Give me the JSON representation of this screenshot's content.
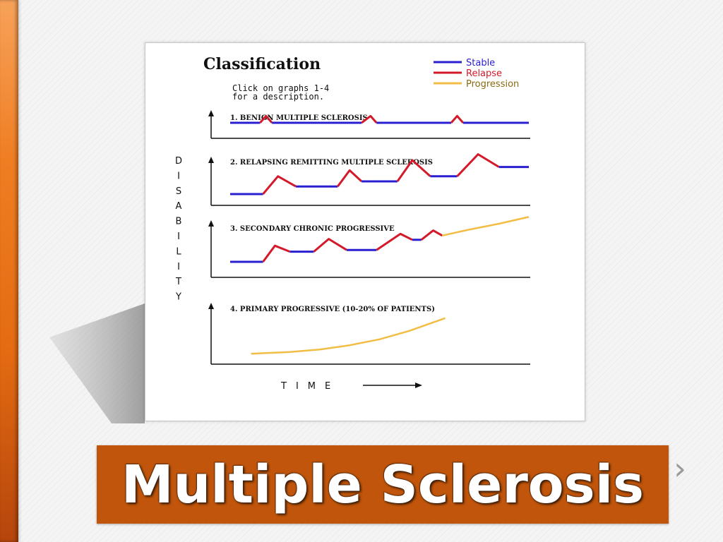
{
  "slide": {
    "title": "Multiple Sclerosis",
    "next_icon": "chevron-right-icon"
  },
  "colors": {
    "stable": "#2a1fd0",
    "relapse": "#d41a2a",
    "progression": "#f2bd44",
    "banner": "#c0550b",
    "accent_bar": "#e46b12"
  },
  "chart_data": {
    "type": "line",
    "title": "Classification",
    "subtitle": [
      "Click on graphs 1-4",
      "for a description."
    ],
    "legend": {
      "placement": "top-right",
      "entries": [
        {
          "name": "Stable",
          "color": "#2a1fd0"
        },
        {
          "name": "Relapse",
          "color": "#d41a2a"
        },
        {
          "name": "Progression",
          "color": "#f2bd44"
        }
      ]
    },
    "ylabel": "DISABILITY",
    "xlabel": "TIME",
    "panels": [
      {
        "label": "1. BENIGN MULTIPLE SCLEROSIS",
        "ylim": [
          0,
          10
        ],
        "segments": [
          {
            "kind": "stable",
            "points": [
              [
                0,
                1
              ],
              [
                0.1,
                1
              ]
            ]
          },
          {
            "kind": "relapse",
            "points": [
              [
                0.1,
                1
              ],
              [
                0.12,
                1.8
              ],
              [
                0.14,
                1
              ]
            ]
          },
          {
            "kind": "stable",
            "points": [
              [
                0.14,
                1
              ],
              [
                0.44,
                1
              ]
            ]
          },
          {
            "kind": "relapse",
            "points": [
              [
                0.44,
                1
              ],
              [
                0.47,
                1.8
              ],
              [
                0.49,
                1
              ]
            ]
          },
          {
            "kind": "stable",
            "points": [
              [
                0.49,
                1
              ],
              [
                0.74,
                1
              ]
            ]
          },
          {
            "kind": "relapse",
            "points": [
              [
                0.74,
                1
              ],
              [
                0.76,
                1.8
              ],
              [
                0.78,
                1
              ]
            ]
          },
          {
            "kind": "stable",
            "points": [
              [
                0.78,
                1
              ],
              [
                1.0,
                1
              ]
            ]
          }
        ]
      },
      {
        "label": "2. RELAPSING REMITTING MULTIPLE SCLEROSIS",
        "ylim": [
          0,
          10
        ],
        "segments": [
          {
            "kind": "stable",
            "points": [
              [
                0,
                0.5
              ],
              [
                0.11,
                0.5
              ]
            ]
          },
          {
            "kind": "relapse",
            "points": [
              [
                0.11,
                0.5
              ],
              [
                0.16,
                2.6
              ],
              [
                0.22,
                1.4
              ]
            ]
          },
          {
            "kind": "stable",
            "points": [
              [
                0.22,
                1.4
              ],
              [
                0.36,
                1.4
              ]
            ]
          },
          {
            "kind": "relapse",
            "points": [
              [
                0.36,
                1.4
              ],
              [
                0.4,
                3.3
              ],
              [
                0.44,
                2.0
              ]
            ]
          },
          {
            "kind": "stable",
            "points": [
              [
                0.44,
                2.0
              ],
              [
                0.56,
                2.0
              ]
            ]
          },
          {
            "kind": "relapse",
            "points": [
              [
                0.56,
                2.0
              ],
              [
                0.61,
                4.5
              ],
              [
                0.67,
                2.6
              ]
            ]
          },
          {
            "kind": "stable",
            "points": [
              [
                0.67,
                2.6
              ],
              [
                0.76,
                2.6
              ]
            ]
          },
          {
            "kind": "relapse",
            "points": [
              [
                0.76,
                2.6
              ],
              [
                0.83,
                5.2
              ],
              [
                0.9,
                3.7
              ]
            ]
          },
          {
            "kind": "stable",
            "points": [
              [
                0.9,
                3.7
              ],
              [
                1.0,
                3.7
              ]
            ]
          }
        ]
      },
      {
        "label": "3. SECONDARY CHRONIC PROGRESSIVE",
        "ylim": [
          0,
          10
        ],
        "segments": [
          {
            "kind": "stable",
            "points": [
              [
                0,
                1.0
              ],
              [
                0.11,
                1.0
              ]
            ]
          },
          {
            "kind": "relapse",
            "points": [
              [
                0.11,
                1.0
              ],
              [
                0.15,
                2.9
              ],
              [
                0.2,
                2.2
              ]
            ]
          },
          {
            "kind": "stable",
            "points": [
              [
                0.2,
                2.2
              ],
              [
                0.28,
                2.2
              ]
            ]
          },
          {
            "kind": "relapse",
            "points": [
              [
                0.28,
                2.2
              ],
              [
                0.33,
                3.7
              ],
              [
                0.39,
                2.4
              ]
            ]
          },
          {
            "kind": "stable",
            "points": [
              [
                0.39,
                2.4
              ],
              [
                0.49,
                2.4
              ]
            ]
          },
          {
            "kind": "relapse",
            "points": [
              [
                0.49,
                2.4
              ],
              [
                0.57,
                4.3
              ],
              [
                0.61,
                3.6
              ]
            ]
          },
          {
            "kind": "stable",
            "points": [
              [
                0.61,
                3.6
              ],
              [
                0.64,
                3.6
              ]
            ]
          },
          {
            "kind": "relapse",
            "points": [
              [
                0.64,
                3.6
              ],
              [
                0.68,
                4.7
              ],
              [
                0.71,
                4.1
              ]
            ]
          },
          {
            "kind": "progression",
            "points": [
              [
                0.71,
                4.1
              ],
              [
                0.8,
                4.8
              ],
              [
                0.9,
                5.5
              ],
              [
                1.0,
                6.3
              ]
            ]
          }
        ]
      },
      {
        "label": "4. PRIMARY PROGRESSIVE  (10-20% OF PATIENTS)",
        "ylim": [
          0,
          10
        ],
        "segments": [
          {
            "kind": "progression",
            "points": [
              [
                0.07,
                0.4
              ],
              [
                0.2,
                0.6
              ],
              [
                0.3,
                0.9
              ],
              [
                0.4,
                1.4
              ],
              [
                0.5,
                2.1
              ],
              [
                0.6,
                3.1
              ],
              [
                0.68,
                4.1
              ],
              [
                0.72,
                4.6
              ]
            ]
          }
        ]
      }
    ]
  }
}
